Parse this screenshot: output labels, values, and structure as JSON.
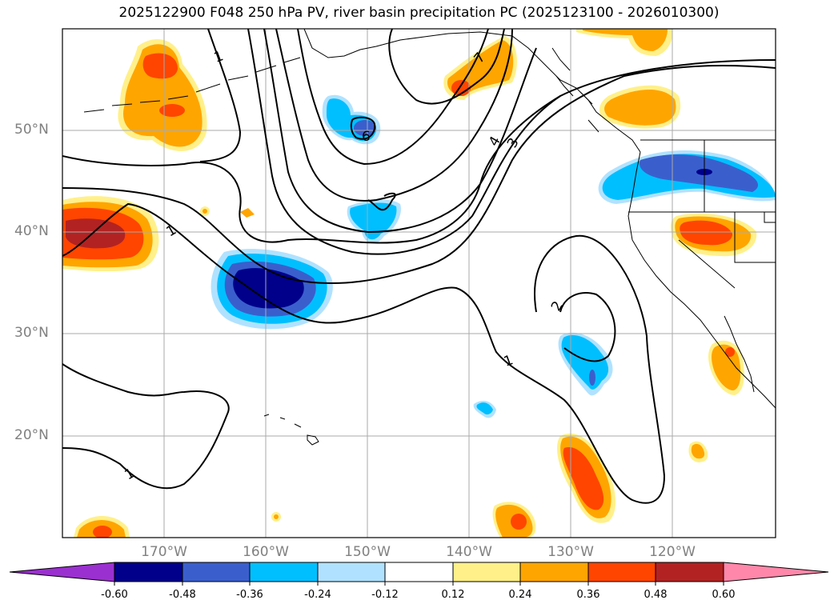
{
  "title": "2025122900 F048 250 hPa PV, river basin precipitation PC (2025123100 - 2026010300)",
  "lat_labels": [
    "50°N",
    "40°N",
    "30°N",
    "20°N"
  ],
  "lon_labels": [
    "170°W",
    "160°W",
    "150°W",
    "140°W",
    "130°W",
    "120°W"
  ],
  "colorbar": {
    "ticks": [
      "-0.60",
      "-0.48",
      "-0.36",
      "-0.24",
      "-0.12",
      "0.12",
      "0.24",
      "0.36",
      "0.48",
      "0.60"
    ],
    "colors": {
      "under": "#9b30d0",
      "b1": "#00008b",
      "b2": "#3a5fcd",
      "b3": "#00bfff",
      "b4": "#b0e2ff",
      "b5": "#ffffff",
      "b6": "#fff08a",
      "b7": "#ffa500",
      "b8": "#ff4500",
      "b9": "#b22222",
      "over": "#ff88aa"
    }
  },
  "contour_labels": [
    "1",
    "1",
    "1",
    "1",
    "2",
    "3",
    "4",
    "6",
    "7"
  ]
}
